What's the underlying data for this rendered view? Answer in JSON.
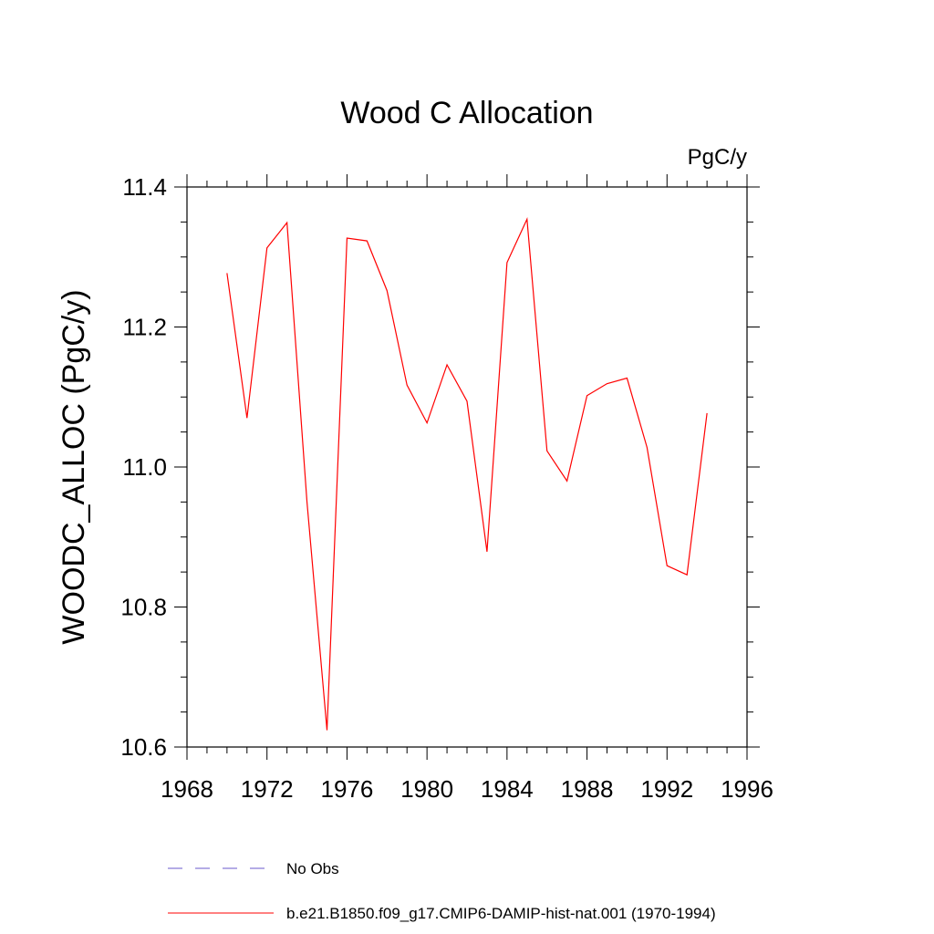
{
  "chart_data": {
    "type": "line",
    "title": "Wood C Allocation",
    "units_label": "PgC/y",
    "xlabel": "",
    "ylabel": "WOODC_ALLOC  (PgC/y)",
    "xlim": [
      1968,
      1996
    ],
    "ylim": [
      10.6,
      11.4
    ],
    "x_ticks": [
      "1968",
      "1972",
      "1976",
      "1980",
      "1984",
      "1988",
      "1992",
      "1996"
    ],
    "y_ticks": [
      "10.6",
      "10.8",
      "11.0",
      "11.2",
      "11.4"
    ],
    "grid": false,
    "legend_position": "bottom",
    "x": [
      1970,
      1971,
      1972,
      1973,
      1974,
      1975,
      1976,
      1977,
      1978,
      1979,
      1980,
      1981,
      1982,
      1983,
      1984,
      1985,
      1986,
      1987,
      1988,
      1989,
      1990,
      1991,
      1992,
      1993,
      1994
    ],
    "series": [
      {
        "name": "b.e21.B1850.f09_g17.CMIP6-DAMIP-hist-nat.001 (1970-1994)",
        "color": "#ff0000",
        "dash": "solid",
        "values": [
          11.277,
          11.07,
          11.313,
          11.349,
          10.95,
          10.624,
          11.327,
          11.323,
          11.252,
          11.117,
          11.063,
          11.146,
          11.094,
          10.879,
          11.292,
          11.354,
          11.023,
          10.98,
          11.102,
          11.119,
          11.127,
          11.028,
          10.859,
          10.846,
          11.077
        ]
      }
    ],
    "legend": [
      {
        "label": "No Obs",
        "color": "#6a5acd",
        "dash": "dashed"
      },
      {
        "label": "b.e21.B1850.f09_g17.CMIP6-DAMIP-hist-nat.001 (1970-1994)",
        "color": "#ff0000",
        "dash": "solid"
      }
    ]
  }
}
